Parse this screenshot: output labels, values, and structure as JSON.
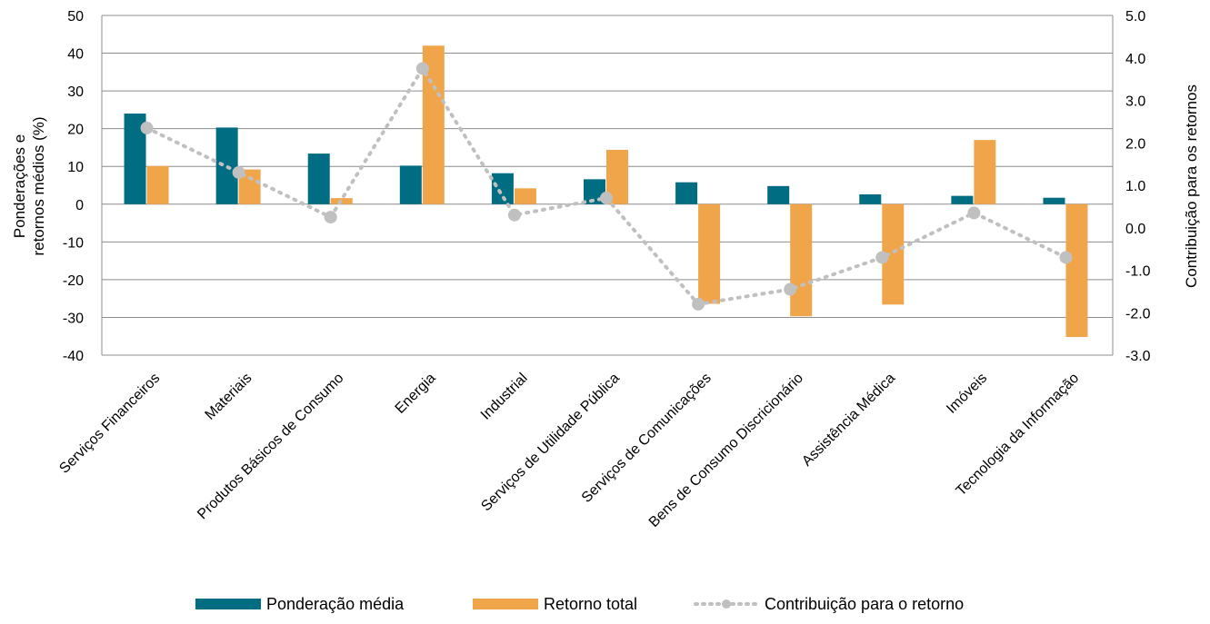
{
  "chart_data": {
    "type": "bar",
    "categories": [
      "Serviços Financeiros",
      "Materiais",
      "Produtos Básicos de Consumo",
      "Energia",
      "Industrial",
      "Serviços de Utilidade Pública",
      "Serviços de Comunicações",
      "Bens de Consumo Discricionário",
      "Assistência Médica",
      "Imóveis",
      "Tecnologia da Informação"
    ],
    "series": [
      {
        "name": "Ponderação média",
        "type": "bar",
        "axis": "left",
        "color": "#006d82",
        "values": [
          24.0,
          20.3,
          13.4,
          10.2,
          8.2,
          6.6,
          5.8,
          4.8,
          2.6,
          2.2,
          1.7
        ]
      },
      {
        "name": "Retorno total",
        "type": "bar",
        "axis": "left",
        "color": "#f0a54b",
        "values": [
          10.1,
          9.2,
          1.6,
          42.0,
          4.2,
          14.4,
          -26.4,
          -29.7,
          -26.6,
          17.0,
          -35.2
        ]
      },
      {
        "name": "Contribuição para o retorno",
        "type": "line",
        "axis": "right",
        "color": "#c0c0c0",
        "values": [
          2.35,
          1.3,
          0.25,
          3.75,
          0.3,
          0.7,
          -1.8,
          -1.45,
          -0.7,
          0.35,
          -0.7
        ]
      }
    ],
    "y_left": {
      "label": "Ponderações e retornos médios (%)",
      "ylim": [
        -40,
        50
      ],
      "ticks": [
        "50",
        "40",
        "30",
        "20",
        "10",
        "0",
        "-10",
        "-20",
        "-30",
        "-40"
      ]
    },
    "y_right": {
      "label": "Contribuição para os retornos",
      "ylim": [
        -3.0,
        5.0
      ],
      "ticks": [
        "5.0",
        "4.0",
        "3.0",
        "2.0",
        "1.0",
        "0.0",
        "-1.0",
        "-2.0",
        "-3.0"
      ]
    },
    "grid": true,
    "legend_position": "bottom-center"
  }
}
